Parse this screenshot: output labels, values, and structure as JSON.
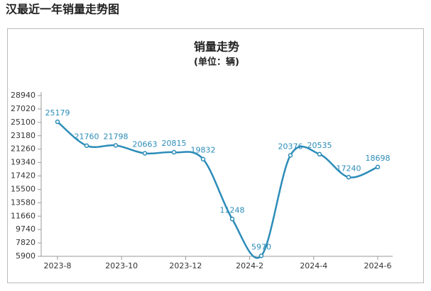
{
  "heading": "汉最近一年销量走势图",
  "chart_data": {
    "type": "line",
    "title": "销量走势",
    "subtitle": "(单位：辆)",
    "xticks": [
      "2023-8",
      "2023-10",
      "2023-12",
      "2024-2",
      "2024-4",
      "2024-6"
    ],
    "values": [
      25179,
      21760,
      21798,
      20663,
      20815,
      19832,
      11248,
      5970,
      20376,
      20535,
      17240,
      18698
    ],
    "color": "#2b8cb8",
    "ylim": [
      5900,
      28940
    ],
    "yticks": [
      5900,
      7820,
      9740,
      11660,
      13580,
      15500,
      17420,
      19340,
      21260,
      23180,
      25100,
      27020,
      28940
    ]
  }
}
